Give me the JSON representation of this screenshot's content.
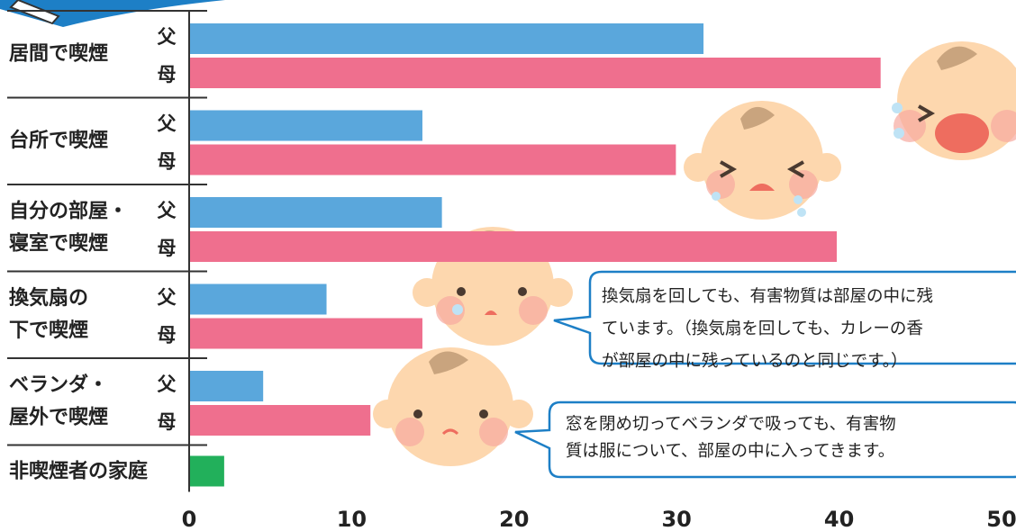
{
  "chart_data": {
    "type": "grouped-hbar",
    "categories": [
      [
        "居間で喫煙"
      ],
      [
        "台所で喫煙"
      ],
      [
        "自分の部屋・",
        "寝室で喫煙"
      ],
      [
        "換気扇の",
        "下で喫煙"
      ],
      [
        "ベランダ・",
        "屋外で喫煙"
      ],
      [
        "非喫煙者の家庭"
      ]
    ],
    "series": [
      {
        "name": "父",
        "color": "#5aa7dc",
        "values": [
          31.6,
          14.3,
          15.5,
          8.4,
          4.5,
          null
        ]
      },
      {
        "name": "母",
        "color": "#ef6f8e",
        "values": [
          42.5,
          29.9,
          39.8,
          14.3,
          11.1,
          null
        ]
      },
      {
        "color": "#22b05b",
        "values": [
          null,
          null,
          null,
          null,
          null,
          2.1
        ]
      }
    ],
    "xlim": [
      0,
      50
    ],
    "xticks": [
      0,
      10,
      20,
      30,
      40,
      50
    ],
    "annotations": [
      {
        "lines": [
          "換気扇を回しても、有害物質は部屋の中に残",
          "ています。（換気扇を回しても、カレーの香",
          "が部屋の中に残っているのと同じです。）"
        ]
      },
      {
        "lines": [
          "窓を閉め切ってベランダで吸っても、有害物",
          "質は服について、部屋の中に入ってきます。"
        ]
      }
    ]
  }
}
